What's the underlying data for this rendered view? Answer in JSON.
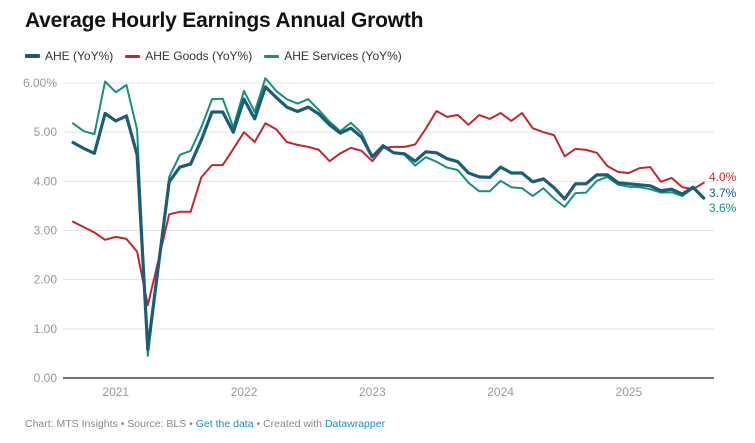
{
  "chart_data": {
    "type": "line",
    "title": "Average Hourly Earnings Annual Growth",
    "xlabel": "",
    "ylabel": "",
    "ylim": [
      0,
      6
    ],
    "grid": true,
    "legend_position": "top-left",
    "y_ticks": [
      "0.00",
      "1.00",
      "2.00",
      "3.00",
      "4.00",
      "5.00",
      "6.00%"
    ],
    "y_tick_values": [
      0,
      1,
      2,
      3,
      4,
      5,
      6
    ],
    "x_ticks": [
      "2021",
      "2022",
      "2023",
      "2024",
      "2025"
    ],
    "x_start": "Sep 2020",
    "x_end": "Aug 2025",
    "x_frequency": "monthly",
    "series": [
      {
        "name": "AHE (YoY%)",
        "color": "#1d5c76",
        "end_label": "3.7%",
        "values": [
          4.79,
          4.67,
          4.57,
          5.38,
          5.23,
          5.33,
          4.54,
          0.58,
          2.3,
          3.99,
          4.29,
          4.35,
          4.84,
          5.41,
          5.41,
          5.0,
          5.67,
          5.27,
          5.92,
          5.71,
          5.51,
          5.42,
          5.51,
          5.37,
          5.15,
          4.98,
          5.08,
          4.9,
          4.5,
          4.72,
          4.58,
          4.56,
          4.41,
          4.6,
          4.58,
          4.46,
          4.4,
          4.17,
          4.09,
          4.08,
          4.29,
          4.17,
          4.17,
          3.99,
          4.05,
          3.87,
          3.64,
          3.95,
          3.95,
          4.13,
          4.13,
          3.97,
          3.95,
          3.93,
          3.91,
          3.81,
          3.84,
          3.74,
          3.88,
          3.66
        ]
      },
      {
        "name": "AHE Goods (YoY%)",
        "color": "#c0282d",
        "end_label": "4.0%",
        "values": [
          3.18,
          3.07,
          2.96,
          2.81,
          2.87,
          2.83,
          2.57,
          1.48,
          2.4,
          3.33,
          3.38,
          3.38,
          4.08,
          4.33,
          4.33,
          4.66,
          5.0,
          4.8,
          5.18,
          5.06,
          4.8,
          4.74,
          4.7,
          4.64,
          4.41,
          4.57,
          4.68,
          4.62,
          4.41,
          4.68,
          4.7,
          4.7,
          4.75,
          5.07,
          5.43,
          5.31,
          5.35,
          5.15,
          5.35,
          5.27,
          5.39,
          5.23,
          5.39,
          5.08,
          5.0,
          4.94,
          4.51,
          4.66,
          4.64,
          4.58,
          4.31,
          4.19,
          4.17,
          4.27,
          4.29,
          3.99,
          4.07,
          3.88,
          3.84,
          3.97
        ]
      },
      {
        "name": "AHE Services (YoY%)",
        "color": "#16907a",
        "end_label": "3.6%",
        "values": [
          5.18,
          5.02,
          4.96,
          6.03,
          5.81,
          5.96,
          5.05,
          0.45,
          2.3,
          4.09,
          4.54,
          4.62,
          5.1,
          5.67,
          5.68,
          5.1,
          5.84,
          5.41,
          6.1,
          5.84,
          5.67,
          5.58,
          5.67,
          5.45,
          5.21,
          5.02,
          5.19,
          4.98,
          4.5,
          4.74,
          4.58,
          4.54,
          4.32,
          4.49,
          4.4,
          4.28,
          4.23,
          3.97,
          3.8,
          3.8,
          4.01,
          3.88,
          3.86,
          3.7,
          3.86,
          3.65,
          3.48,
          3.76,
          3.77,
          4.01,
          4.09,
          3.93,
          3.89,
          3.88,
          3.84,
          3.77,
          3.78,
          3.7,
          3.86,
          3.68
        ]
      }
    ]
  },
  "footer": {
    "chart_by": "Chart: MTS Insights",
    "sep1": " • ",
    "source": "Source: BLS",
    "sep2": " • ",
    "get_data": "Get the data",
    "sep3": " • ",
    "created_with": "Created with ",
    "datawrapper": "Datawrapper"
  }
}
